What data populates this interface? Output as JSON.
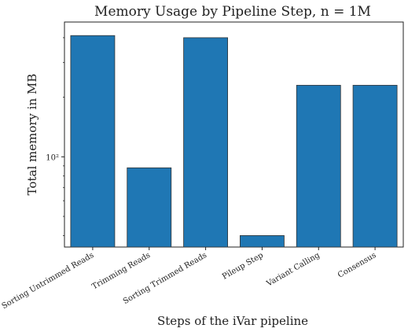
{
  "chart_data": {
    "type": "bar",
    "title": "Memory Usage by Pipeline Step, n = 1M",
    "xlabel": "Steps of the iVar pipeline",
    "ylabel": "Total memory in MB",
    "yscale": "log",
    "ylim": [
      35,
      480
    ],
    "yticks": [
      100
    ],
    "ytick_labels": [
      "10²"
    ],
    "categories": [
      "Sorting Untrimmed Reads",
      "Trimming Reads",
      "Sorting Trimmed Reads",
      "Pileup Step",
      "Variant Calling",
      "Consensus"
    ],
    "values": [
      410,
      88,
      400,
      40,
      230,
      230
    ],
    "color": "#1f77b4",
    "grid": false,
    "legend": "none"
  }
}
